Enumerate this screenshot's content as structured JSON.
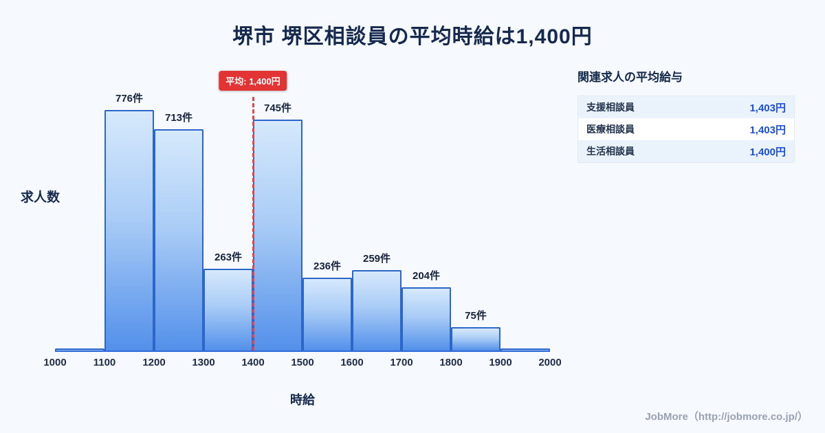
{
  "page": {
    "title": "堺市 堺区相談員の平均時給は1,400円",
    "footer": "JobMore（http://jobmore.co.jp/）"
  },
  "chart_data": {
    "type": "bar",
    "title": "堺市 堺区相談員の平均時給は1,400円",
    "xlabel": "時給",
    "ylabel": "求人数",
    "x_ticks": [
      "1000",
      "1100",
      "1200",
      "1300",
      "1400",
      "1500",
      "1600",
      "1700",
      "1800",
      "1900",
      "2000"
    ],
    "x_range": [
      1000,
      2000
    ],
    "ylim": [
      0,
      800
    ],
    "bins": [
      {
        "range": [
          1000,
          1100
        ],
        "count": 6,
        "label": ""
      },
      {
        "range": [
          1100,
          1200
        ],
        "count": 776,
        "label": "776件"
      },
      {
        "range": [
          1200,
          1300
        ],
        "count": 713,
        "label": "713件"
      },
      {
        "range": [
          1300,
          1400
        ],
        "count": 263,
        "label": "263件"
      },
      {
        "range": [
          1400,
          1500
        ],
        "count": 745,
        "label": "745件"
      },
      {
        "range": [
          1500,
          1600
        ],
        "count": 236,
        "label": "236件"
      },
      {
        "range": [
          1600,
          1700
        ],
        "count": 259,
        "label": "259件"
      },
      {
        "range": [
          1700,
          1800
        ],
        "count": 204,
        "label": "204件"
      },
      {
        "range": [
          1800,
          1900
        ],
        "count": 75,
        "label": "75件"
      },
      {
        "range": [
          1900,
          2000
        ],
        "count": 6,
        "label": ""
      }
    ],
    "mean_line": {
      "x": 1400,
      "label": "平均: 1,400円",
      "color": "#e23434"
    },
    "legend": "off",
    "grid": "off"
  },
  "side_panel": {
    "heading": "関連求人の平均給与",
    "rows": [
      {
        "label": "支援相談員",
        "value": "1,403円"
      },
      {
        "label": "医療相談員",
        "value": "1,403円"
      },
      {
        "label": "生活相談員",
        "value": "1,400円"
      }
    ]
  },
  "colors": {
    "background": "#f6f9fd",
    "bar_border": "#2c66c9",
    "bar_gradient_top": "#d6e9fc",
    "bar_gradient_bottom": "#5390ea",
    "mean_red": "#e23434",
    "title_navy": "#15294e",
    "value_blue": "#1b4fd6"
  }
}
